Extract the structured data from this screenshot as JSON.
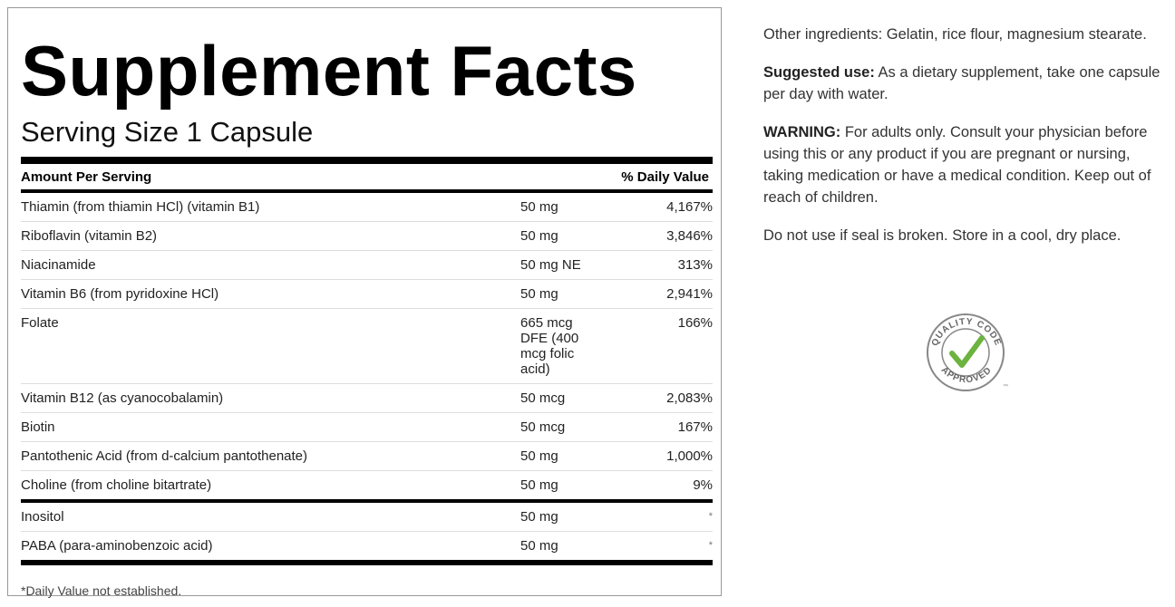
{
  "facts": {
    "title": "Supplement Facts",
    "serving_size": "Serving Size 1 Capsule",
    "header": {
      "amount": "Amount Per Serving",
      "dv": "% Daily Value"
    },
    "rows": [
      [
        "Thiamin (from thiamin HCl) (vitamin B1)",
        "50 mg",
        "4,167%"
      ],
      [
        "Riboflavin (vitamin B2)",
        "50 mg",
        "3,846%"
      ],
      [
        "Niacinamide",
        "50 mg NE",
        "313%"
      ],
      [
        "Vitamin B6 (from pyridoxine HCl)",
        "50 mg",
        "2,941%"
      ],
      [
        "Folate",
        "665 mcg DFE (400 mcg folic acid)",
        "166%"
      ],
      [
        "Vitamin B12 (as cyanocobalamin)",
        "50 mcg",
        "2,083%"
      ],
      [
        "Biotin",
        "50 mcg",
        "167%"
      ],
      [
        "Pantothenic Acid (from d-calcium pantothenate)",
        "50 mg",
        "1,000%"
      ],
      [
        "Choline (from choline bitartrate)",
        "50 mg",
        "9%"
      ]
    ],
    "extra_rows": [
      [
        "Inositol",
        "50 mg",
        "*"
      ],
      [
        "PABA (para-aminobenzoic acid)",
        "50 mg",
        "*"
      ]
    ],
    "footnote": "*Daily Value not established."
  },
  "sidebar": {
    "other_ingredients": "Other ingredients: Gelatin, rice flour, magnesium stearate.",
    "suggested_use": {
      "label": "Suggested use:",
      "text": "As a dietary supplement, take one capsule per day with water."
    },
    "warning": {
      "label": "WARNING:",
      "text": "For adults only. Consult your physician before using this or any product if you are pregnant or nursing, taking medication or have a medical condition. Keep out of reach of children."
    },
    "storage": "Do not use if seal is broken. Store in a cool, dry place.",
    "badge": {
      "top": "QUALITY CODE",
      "bottom": "APPROVED",
      "tm": "™"
    }
  }
}
